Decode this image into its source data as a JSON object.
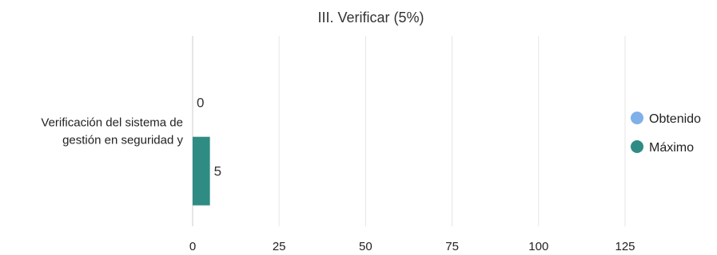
{
  "chart_data": {
    "type": "bar",
    "orientation": "horizontal",
    "title": "III. Verificar (5%)",
    "categories": [
      [
        "Verificación del sistema de",
        "gestión en seguridad y"
      ]
    ],
    "series": [
      {
        "name": "Obtenido",
        "values": [
          0
        ],
        "color": "#7fb0e8"
      },
      {
        "name": "Máximo",
        "values": [
          5
        ],
        "color": "#2e8c84"
      }
    ],
    "xlim": [
      0,
      125
    ],
    "xticks": [
      0,
      25,
      50,
      75,
      100,
      125
    ],
    "xlabel": "",
    "ylabel": "",
    "grid": true,
    "legend": "right"
  }
}
